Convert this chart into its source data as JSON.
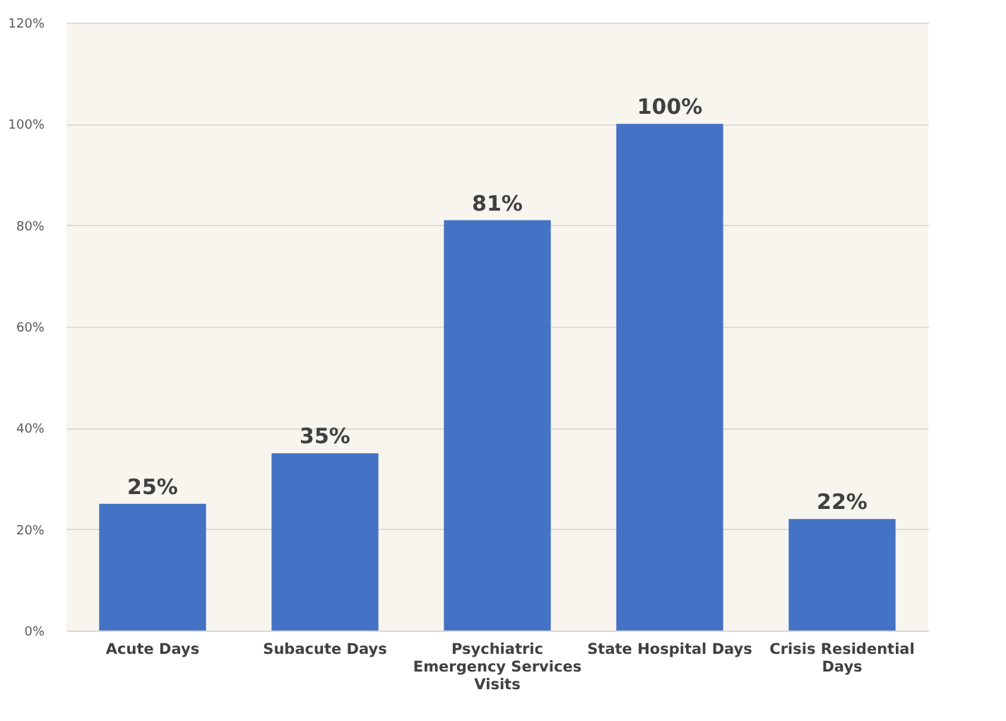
{
  "chart_data": {
    "type": "bar",
    "categories": [
      "Acute Days",
      "Subacute Days",
      "Psychiatric Emergency Services Visits",
      "State Hospital Days",
      "Crisis Residential Days"
    ],
    "values": [
      25,
      35,
      81,
      100,
      22
    ],
    "value_labels": [
      "25%",
      "35%",
      "81%",
      "100%",
      "22%"
    ],
    "color": "#4472c4",
    "ylim": [
      0,
      120
    ],
    "yticks": [
      {
        "value": 0,
        "label": "0%"
      },
      {
        "value": 20,
        "label": "20%"
      },
      {
        "value": 40,
        "label": "40%"
      },
      {
        "value": 60,
        "label": "60%"
      },
      {
        "value": 80,
        "label": "80%"
      },
      {
        "value": 100,
        "label": "100%"
      },
      {
        "value": 120,
        "label": "120%"
      }
    ],
    "grid": "y"
  }
}
